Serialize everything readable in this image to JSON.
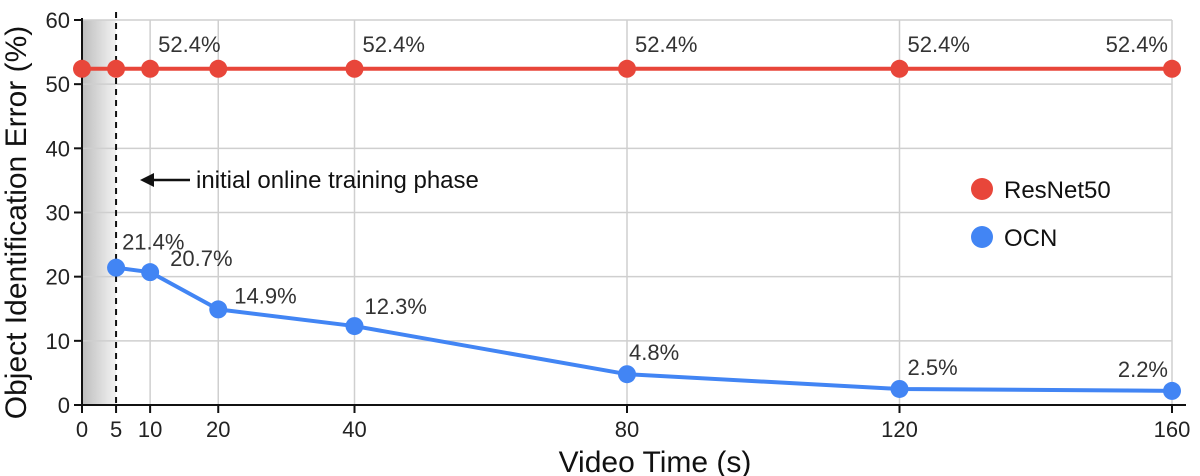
{
  "chart_data": {
    "type": "line",
    "xlabel": "Video Time (s)",
    "ylabel": "Object Identification Error (%)",
    "xlim": [
      0,
      160
    ],
    "ylim": [
      0,
      60
    ],
    "x_ticks": [
      0,
      5,
      10,
      20,
      40,
      80,
      120,
      160
    ],
    "y_ticks": [
      0,
      10,
      20,
      30,
      40,
      50,
      60
    ],
    "grid": true,
    "legend_position": "right",
    "series": [
      {
        "name": "ResNet50",
        "color": "#e8463a",
        "x": [
          0,
          5,
          10,
          20,
          40,
          80,
          120,
          160
        ],
        "y": [
          52.4,
          52.4,
          52.4,
          52.4,
          52.4,
          52.4,
          52.4,
          52.4
        ],
        "labels": [
          {
            "x": 10,
            "text": "52.4%"
          },
          {
            "x": 40,
            "text": "52.4%"
          },
          {
            "x": 80,
            "text": "52.4%"
          },
          {
            "x": 120,
            "text": "52.4%"
          },
          {
            "x": 160,
            "text": "52.4%"
          }
        ]
      },
      {
        "name": "OCN",
        "color": "#4285f4",
        "x": [
          5,
          10,
          20,
          40,
          80,
          120,
          160
        ],
        "y": [
          21.4,
          20.7,
          14.9,
          12.3,
          4.8,
          2.5,
          2.2
        ],
        "labels": [
          {
            "x": 5,
            "text": "21.4%"
          },
          {
            "x": 10,
            "text": "20.7%"
          },
          {
            "x": 20,
            "text": "14.9%"
          },
          {
            "x": 40,
            "text": "12.3%"
          },
          {
            "x": 80,
            "text": "4.8%"
          },
          {
            "x": 120,
            "text": "2.5%"
          },
          {
            "x": 160,
            "text": "2.2%"
          }
        ]
      }
    ],
    "shaded_region": {
      "x_start": 0,
      "x_end": 5
    },
    "vertical_line_x": 5,
    "annotation": {
      "text": "initial online training phase",
      "arrow": "left"
    }
  }
}
